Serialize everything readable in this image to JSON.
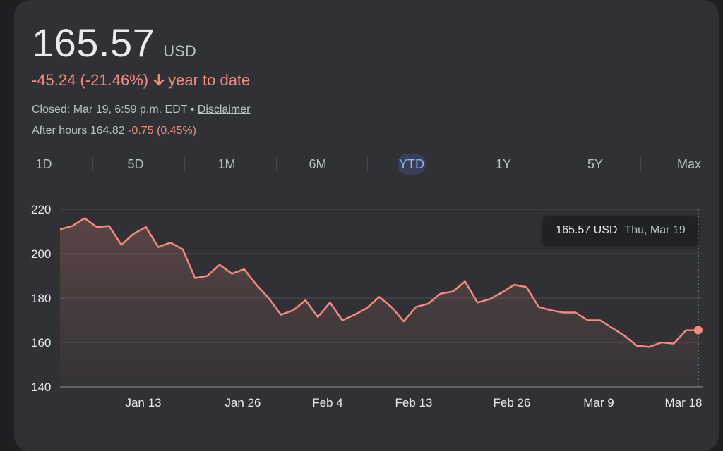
{
  "quote": {
    "price": "165.57",
    "currency": "USD",
    "change": "-45.24 (-21.46%)",
    "period_label": "year to date",
    "closed_text": "Closed: Mar 19, 6:59 p.m. EDT",
    "separator": "•",
    "disclaimer_label": "Disclaimer",
    "after_hours_label": "After hours 164.82",
    "after_hours_change": "-0.75 (0.45%)"
  },
  "tabs": [
    "1D",
    "5D",
    "1M",
    "6M",
    "YTD",
    "1Y",
    "5Y",
    "Max"
  ],
  "active_tab": "YTD",
  "tooltip": {
    "value": "165.57 USD",
    "date": "Thu, Mar 19"
  },
  "colors": {
    "line": "#f28b82",
    "negative": "#f28b82",
    "active_tab": "#8ab4f8",
    "background": "#303134"
  },
  "chart_data": {
    "type": "area",
    "ylim": [
      140,
      220
    ],
    "yticks": [
      220,
      200,
      180,
      160,
      140
    ],
    "xtick_labels": [
      "Jan 13",
      "Jan 26",
      "Feb 4",
      "Feb 13",
      "Feb 26",
      "Mar 9",
      "Mar 18"
    ],
    "grid": true,
    "series": [
      {
        "values": [
          211,
          212.5,
          216,
          212,
          212.5,
          204,
          209,
          212,
          203,
          205,
          202,
          189,
          190,
          195,
          191,
          193,
          186,
          180,
          172.5,
          174.5,
          179,
          171.5,
          178,
          170,
          172.5,
          175.5,
          180.5,
          176,
          169.5,
          176,
          177.5,
          182,
          183,
          187.5,
          178,
          179.5,
          182.5,
          186,
          185,
          176,
          174.5,
          173.5,
          173.5,
          170,
          170,
          166.5,
          163,
          158.5,
          158,
          160,
          159.5,
          165.5,
          165.57
        ]
      }
    ]
  }
}
